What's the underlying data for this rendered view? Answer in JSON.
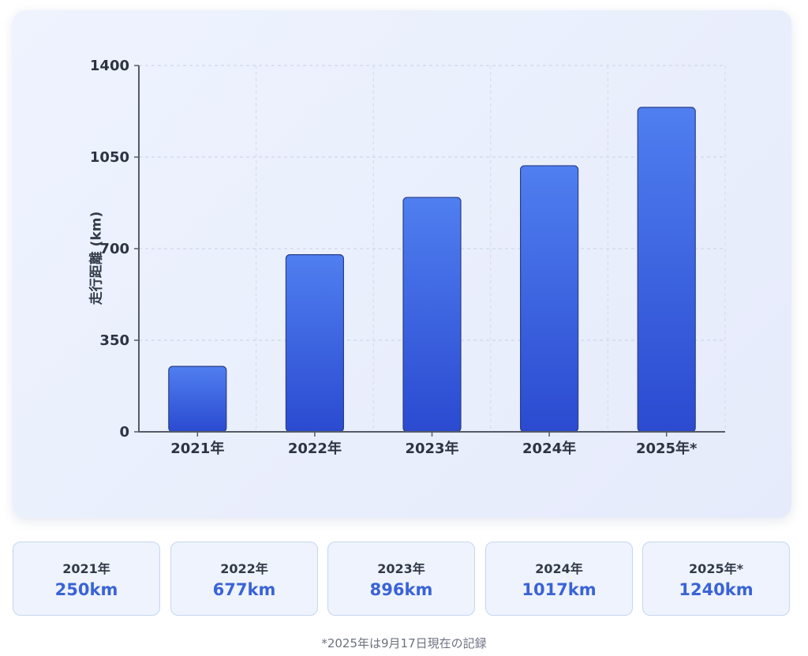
{
  "chart_data": {
    "type": "bar",
    "categories": [
      "2021年",
      "2022年",
      "2023年",
      "2024年",
      "2025年*"
    ],
    "values": [
      250,
      677,
      896,
      1017,
      1240
    ],
    "xlabel": "",
    "ylabel": "走行距離 (km)",
    "ylim": [
      0,
      1400
    ],
    "yticks": [
      0,
      350,
      700,
      1050,
      1400
    ],
    "grid": true,
    "colors": {
      "bar_top": "#4f7ff0",
      "bar_bottom": "#2b4ad0",
      "bar_stroke": "#2a3f85"
    }
  },
  "stats": [
    {
      "year": "2021年",
      "value": "250km"
    },
    {
      "year": "2022年",
      "value": "677km"
    },
    {
      "year": "2023年",
      "value": "896km"
    },
    {
      "year": "2024年",
      "value": "1017km"
    },
    {
      "year": "2025年*",
      "value": "1240km"
    }
  ],
  "footnote": "*2025年は9月17日現在の記録"
}
